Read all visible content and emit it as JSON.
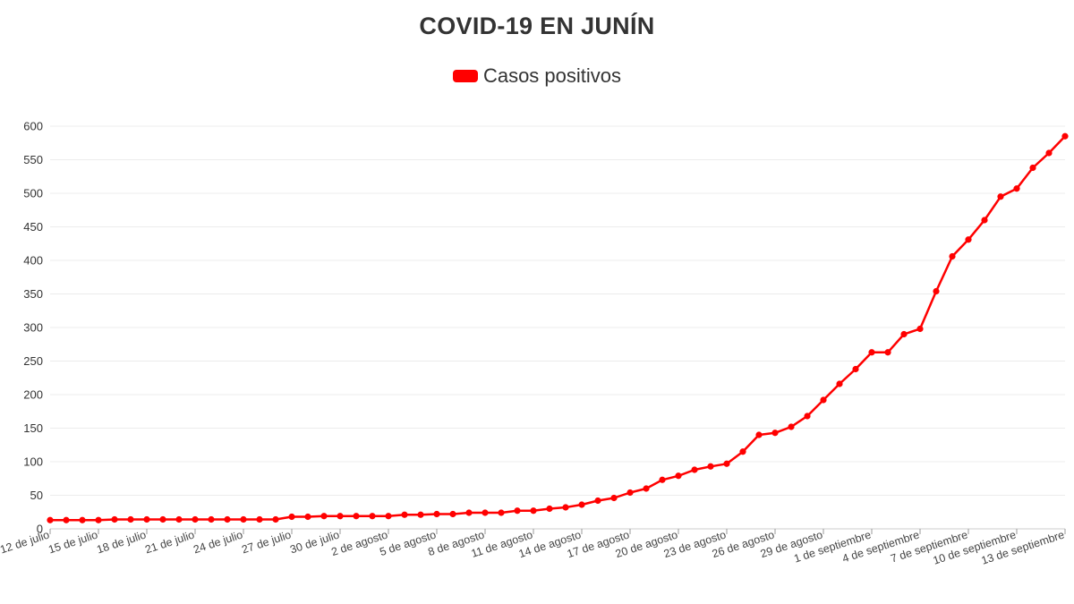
{
  "chart_data": {
    "type": "line",
    "title": "COVID-19 EN JUNÍN",
    "xlabel": "",
    "ylabel": "",
    "ylim": [
      0,
      600
    ],
    "yticks": [
      0,
      50,
      100,
      150,
      200,
      250,
      300,
      350,
      400,
      450,
      500,
      550,
      600
    ],
    "x_tick_labels": [
      "12 de julio",
      "15 de julio",
      "18 de julio",
      "21 de julio",
      "24 de julio",
      "27 de julio",
      "30 de julio",
      "2 de agosto",
      "5 de agosto",
      "8 de agosto",
      "11 de agosto",
      "14 de agosto",
      "17 de agosto",
      "20 de agosto",
      "23 de agosto",
      "26 de agosto",
      "29 de agosto",
      "1 de septiembre",
      "4 de septiembre",
      "7 de septiembre",
      "10 de septiembre",
      "13 de septiembre"
    ],
    "x_start": "12 de julio",
    "x_end": "13 de septiembre",
    "grid": true,
    "legend_position": "top-center",
    "series": [
      {
        "name": "Casos positivos",
        "color": "#ff0000",
        "values": [
          13,
          13,
          13,
          13,
          14,
          14,
          14,
          14,
          14,
          14,
          14,
          14,
          14,
          14,
          14,
          18,
          18,
          19,
          19,
          19,
          19,
          19,
          21,
          21,
          22,
          22,
          24,
          24,
          24,
          27,
          27,
          30,
          32,
          36,
          42,
          46,
          54,
          60,
          73,
          79,
          88,
          93,
          97,
          115,
          140,
          143,
          152,
          168,
          192,
          216,
          238,
          263,
          263,
          290,
          298,
          354,
          406,
          431,
          460,
          495,
          507,
          538,
          560,
          585
        ]
      }
    ]
  }
}
